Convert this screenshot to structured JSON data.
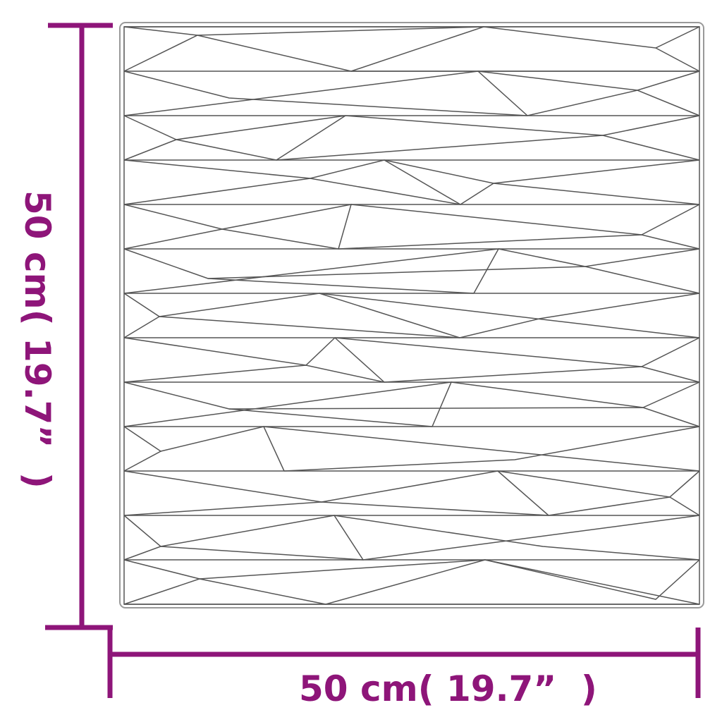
{
  "product": "3D wall panel",
  "dimensions": {
    "width_label": "50 cm( 19.7”  )",
    "height_label": "50 cm( 19.7”  )"
  },
  "colors": {
    "dimension_accent": "#8e1579",
    "pattern_lines": "#555555"
  }
}
